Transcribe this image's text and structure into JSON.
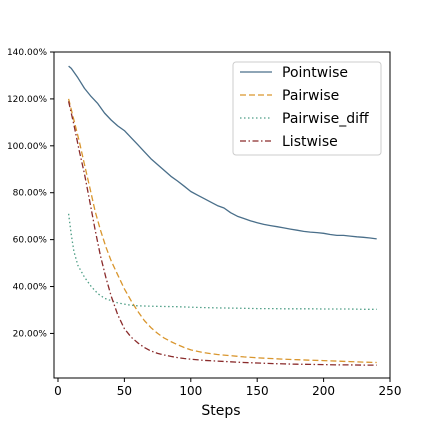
{
  "chart_data": {
    "type": "line",
    "title": "",
    "xlabel": "Steps",
    "ylabel": "",
    "xlim": [
      -3,
      250
    ],
    "ylim": [
      0.01,
      1.4
    ],
    "xticks": [
      0,
      50,
      100,
      150,
      200,
      250
    ],
    "xtick_labels": [
      "0",
      "50",
      "100",
      "150",
      "200",
      "250"
    ],
    "yticks": [
      0.2,
      0.4,
      0.6,
      0.8,
      1.0,
      1.2,
      1.4
    ],
    "ytick_labels": [
      "20.00%",
      "40.00%",
      "60.00%",
      "80.00%",
      "100.00%",
      "120.00%",
      "140.00%"
    ],
    "grid": false,
    "legend_position": "top-right",
    "series": [
      {
        "name": "Pointwise",
        "color": "#4a6f8a",
        "dash": "solid",
        "x": [
          8,
          10,
          15,
          20,
          25,
          30,
          35,
          40,
          45,
          50,
          55,
          60,
          65,
          70,
          75,
          80,
          85,
          90,
          95,
          100,
          105,
          110,
          115,
          120,
          125,
          130,
          135,
          140,
          145,
          150,
          155,
          160,
          165,
          170,
          175,
          180,
          185,
          190,
          195,
          200,
          205,
          210,
          215,
          220,
          225,
          230,
          235,
          240
        ],
        "y": [
          1.34,
          1.33,
          1.29,
          1.245,
          1.21,
          1.18,
          1.14,
          1.11,
          1.085,
          1.065,
          1.035,
          1.005,
          0.975,
          0.945,
          0.92,
          0.895,
          0.87,
          0.85,
          0.828,
          0.805,
          0.79,
          0.775,
          0.76,
          0.745,
          0.735,
          0.715,
          0.7,
          0.69,
          0.68,
          0.672,
          0.665,
          0.66,
          0.655,
          0.65,
          0.645,
          0.64,
          0.635,
          0.632,
          0.63,
          0.627,
          0.622,
          0.618,
          0.618,
          0.615,
          0.612,
          0.61,
          0.607,
          0.603
        ]
      },
      {
        "name": "Pairwise",
        "color": "#d9962e",
        "dash": "dashed",
        "x": [
          8,
          12,
          16,
          20,
          24,
          28,
          32,
          36,
          40,
          45,
          50,
          55,
          60,
          65,
          70,
          75,
          80,
          85,
          90,
          95,
          100,
          110,
          120,
          130,
          140,
          150,
          160,
          170,
          180,
          190,
          200,
          210,
          220,
          230,
          240
        ],
        "y": [
          1.2,
          1.11,
          1.02,
          0.92,
          0.82,
          0.72,
          0.64,
          0.57,
          0.51,
          0.45,
          0.39,
          0.34,
          0.295,
          0.255,
          0.225,
          0.2,
          0.18,
          0.165,
          0.152,
          0.14,
          0.13,
          0.118,
          0.11,
          0.105,
          0.1,
          0.096,
          0.093,
          0.09,
          0.088,
          0.086,
          0.084,
          0.082,
          0.08,
          0.078,
          0.076
        ]
      },
      {
        "name": "Pairwise_diff",
        "color": "#4e9e86",
        "dash": "dotted",
        "x": [
          8,
          10,
          12,
          15,
          20,
          25,
          30,
          35,
          40,
          45,
          50,
          55,
          60,
          70,
          80,
          90,
          100,
          110,
          120,
          130,
          140,
          150,
          160,
          170,
          180,
          190,
          200,
          210,
          220,
          230,
          240
        ],
        "y": [
          0.71,
          0.62,
          0.55,
          0.49,
          0.44,
          0.4,
          0.37,
          0.35,
          0.34,
          0.33,
          0.325,
          0.32,
          0.318,
          0.316,
          0.315,
          0.314,
          0.312,
          0.31,
          0.309,
          0.308,
          0.307,
          0.306,
          0.306,
          0.305,
          0.305,
          0.305,
          0.304,
          0.304,
          0.304,
          0.303,
          0.303
        ]
      },
      {
        "name": "Listwise",
        "color": "#8a2b2b",
        "dash": "dashdot",
        "x": [
          8,
          12,
          16,
          20,
          24,
          28,
          32,
          36,
          40,
          45,
          50,
          55,
          60,
          65,
          70,
          75,
          80,
          85,
          90,
          95,
          100,
          110,
          120,
          130,
          140,
          150,
          160,
          170,
          180,
          190,
          200,
          210,
          220,
          230,
          240
        ],
        "y": [
          1.19,
          1.09,
          0.98,
          0.88,
          0.76,
          0.64,
          0.53,
          0.44,
          0.36,
          0.28,
          0.22,
          0.185,
          0.16,
          0.14,
          0.125,
          0.115,
          0.108,
          0.102,
          0.097,
          0.093,
          0.09,
          0.085,
          0.082,
          0.079,
          0.076,
          0.074,
          0.072,
          0.07,
          0.069,
          0.068,
          0.067,
          0.066,
          0.066,
          0.065,
          0.065
        ]
      }
    ]
  }
}
